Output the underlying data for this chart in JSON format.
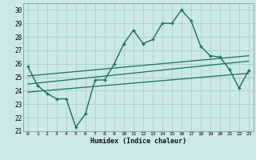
{
  "title": "",
  "xlabel": "Humidex (Indice chaleur)",
  "bg_color": "#cce8e8",
  "grid_color": "#aad4d4",
  "line_color": "#1a7060",
  "xlim": [
    -0.5,
    23.5
  ],
  "ylim": [
    21,
    30.5
  ],
  "yticks": [
    21,
    22,
    23,
    24,
    25,
    26,
    27,
    28,
    29,
    30
  ],
  "xticks": [
    0,
    1,
    2,
    3,
    4,
    5,
    6,
    7,
    8,
    9,
    10,
    11,
    12,
    13,
    14,
    15,
    16,
    17,
    18,
    19,
    20,
    21,
    22,
    23
  ],
  "series1_x": [
    0,
    1,
    2,
    3,
    4,
    5,
    6,
    7,
    8,
    9,
    10,
    11,
    12,
    13,
    14,
    15,
    16,
    17,
    18,
    19,
    20,
    21,
    22,
    23
  ],
  "series1_y": [
    25.8,
    24.4,
    23.8,
    23.4,
    23.4,
    21.3,
    22.3,
    24.8,
    24.8,
    26.0,
    27.5,
    28.5,
    27.5,
    27.8,
    29.0,
    29.0,
    30.0,
    29.2,
    27.3,
    26.6,
    26.5,
    25.6,
    24.2,
    25.5
  ],
  "series2_x": [
    0,
    23
  ],
  "series2_y": [
    25.1,
    26.6
  ],
  "series3_x": [
    0,
    23
  ],
  "series3_y": [
    24.5,
    26.2
  ],
  "series4_x": [
    0,
    23
  ],
  "series4_y": [
    23.9,
    25.3
  ]
}
